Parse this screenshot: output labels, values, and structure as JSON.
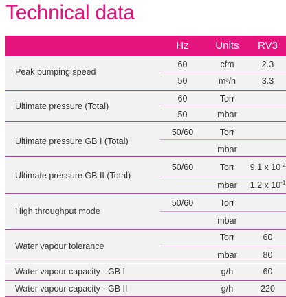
{
  "title": "Technical data",
  "header": {
    "hz": "Hz",
    "units": "Units",
    "model": "RV3"
  },
  "groups": [
    {
      "label": "Peak pumping speed",
      "rows": [
        {
          "hz": "60",
          "unit": "cfm",
          "value": "2.3"
        },
        {
          "hz": "50",
          "unit": "m³/h",
          "value": "3.3"
        }
      ]
    },
    {
      "label": "Ultimate pressure (Total)",
      "rows": [
        {
          "hz": "60",
          "unit": "Torr",
          "value": ""
        },
        {
          "hz": "50",
          "unit": "mbar",
          "value": ""
        }
      ]
    },
    {
      "label": "Ultimate pressure GB I (Total)",
      "rows": [
        {
          "hz": "50/60",
          "unit": "Torr",
          "value": ""
        },
        {
          "hz": "",
          "unit": "mbar",
          "value": ""
        }
      ]
    },
    {
      "label": "Ultimate pressure GB II (Total)",
      "rows": [
        {
          "hz": "50/60",
          "unit": "Torr",
          "value_base": "9.1 x 10",
          "value_exp": "-2"
        },
        {
          "hz": "",
          "unit": "mbar",
          "value_base": "1.2 x 10",
          "value_exp": "-1"
        }
      ]
    },
    {
      "label": "High throughput mode",
      "rows": [
        {
          "hz": "50/60",
          "unit": "Torr",
          "value": ""
        },
        {
          "hz": "",
          "unit": "mbar",
          "value": ""
        }
      ]
    },
    {
      "label": "Water vapour tolerance",
      "rows": [
        {
          "hz": "",
          "unit": "Torr",
          "value": "60"
        },
        {
          "hz": "",
          "unit": "mbar",
          "value": "80"
        }
      ]
    },
    {
      "label": "Water vapour capacity - GB I",
      "rows": [
        {
          "hz": "",
          "unit": "g/h",
          "value": "60"
        }
      ]
    },
    {
      "label": "Water vapour capacity - GB II",
      "rows": [
        {
          "hz": "",
          "unit": "g/h",
          "value": "220"
        }
      ]
    }
  ],
  "colors": {
    "accent": "#e4157e",
    "row_bg": "#f2f2f3",
    "divider": "#a84a9a"
  }
}
